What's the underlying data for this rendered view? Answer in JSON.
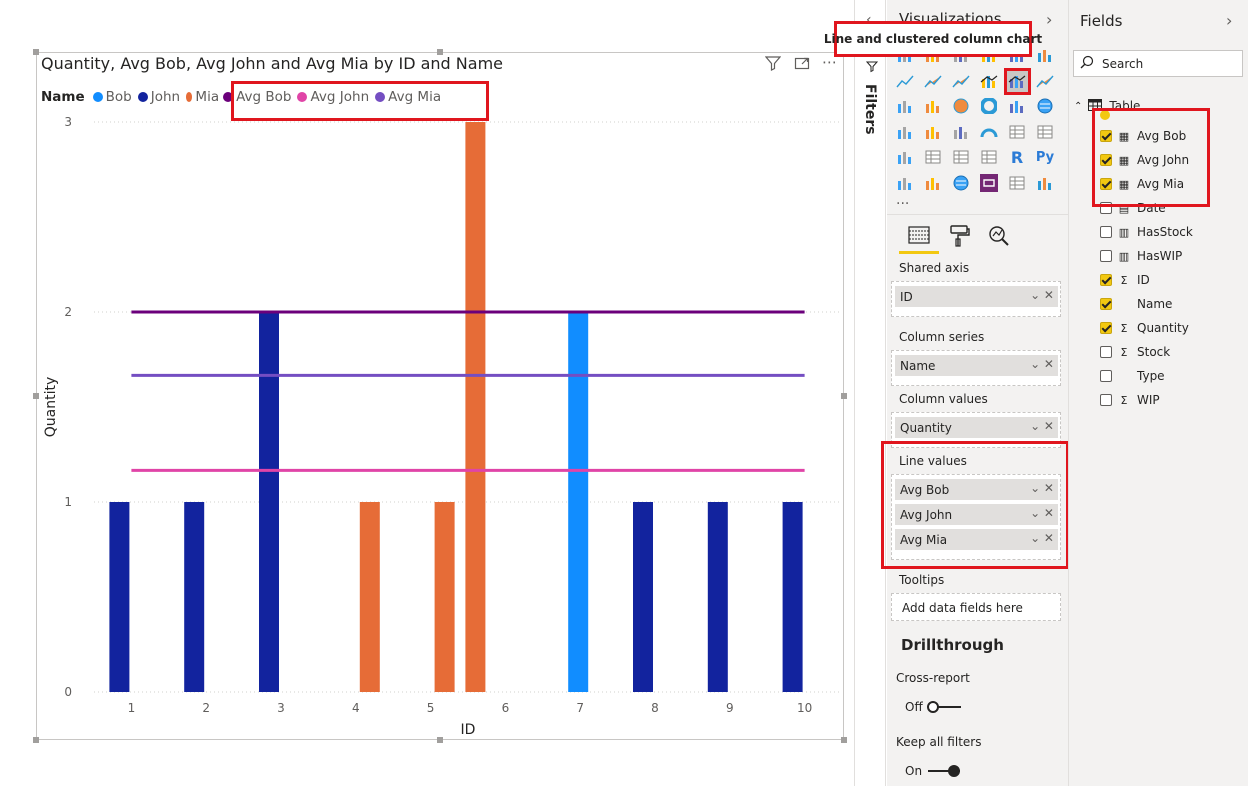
{
  "chart_title": "Quantity, Avg Bob, Avg John and Avg Mia by ID and Name",
  "legend": {
    "title": "Name",
    "items": [
      {
        "label": "Bob",
        "color": "#118dff"
      },
      {
        "label": "John",
        "color": "#12239e"
      },
      {
        "label": "Mia",
        "color": "#e66c37"
      },
      {
        "label": "Avg Bob",
        "color": "#6b007b"
      },
      {
        "label": "Avg John",
        "color": "#e044a7"
      },
      {
        "label": "Avg Mia",
        "color": "#744ec2"
      }
    ]
  },
  "chart_data": {
    "type": "bar",
    "xlabel": "ID",
    "ylabel": "Quantity",
    "ylim": [
      0,
      3
    ],
    "yticks": [
      0,
      1,
      2,
      3
    ],
    "categories": [
      1,
      2,
      3,
      4,
      5,
      6,
      7,
      8,
      9,
      10
    ],
    "series": [
      {
        "name": "Bob",
        "color": "#118dff",
        "values": [
          null,
          null,
          null,
          null,
          null,
          null,
          2,
          null,
          null,
          null
        ]
      },
      {
        "name": "John",
        "color": "#12239e",
        "values": [
          1,
          1,
          2,
          null,
          null,
          null,
          null,
          1,
          1,
          1
        ]
      },
      {
        "name": "Mia",
        "color": "#e66c37",
        "values": [
          null,
          null,
          null,
          1,
          1,
          3,
          null,
          null,
          null,
          null
        ]
      }
    ],
    "lines": [
      {
        "name": "Avg Bob",
        "color": "#6b007b",
        "value": 2
      },
      {
        "name": "Avg John",
        "color": "#e044a7",
        "value": 1.1667
      },
      {
        "name": "Avg Mia",
        "color": "#744ec2",
        "value": 1.6667
      }
    ]
  },
  "filters_label": "Filters",
  "visualizations": {
    "title": "Visualizations",
    "tooltip": "Line and clustered column chart",
    "more": "...",
    "wells": {
      "shared_axis": {
        "label": "Shared axis",
        "fields": [
          "ID"
        ]
      },
      "column_series": {
        "label": "Column series",
        "fields": [
          "Name"
        ]
      },
      "column_values": {
        "label": "Column values",
        "fields": [
          "Quantity"
        ]
      },
      "line_values": {
        "label": "Line values",
        "fields": [
          "Avg Bob",
          "Avg John",
          "Avg Mia"
        ]
      },
      "tooltips": {
        "label": "Tooltips",
        "placeholder": "Add data fields here"
      }
    },
    "drillthrough": {
      "title": "Drillthrough",
      "cross_report": {
        "label": "Cross-report",
        "state": "Off"
      },
      "keep_all_filters": {
        "label": "Keep all filters",
        "state": "On"
      }
    }
  },
  "fields": {
    "title": "Fields",
    "search_placeholder": "Search",
    "table_name": "Table",
    "items": [
      {
        "name": "Avg Bob",
        "checked": true,
        "type": "measure"
      },
      {
        "name": "Avg John",
        "checked": true,
        "type": "measure"
      },
      {
        "name": "Avg Mia",
        "checked": true,
        "type": "measure"
      },
      {
        "name": "Date",
        "checked": false,
        "type": "date"
      },
      {
        "name": "HasStock",
        "checked": false,
        "type": "table"
      },
      {
        "name": "HasWIP",
        "checked": false,
        "type": "table"
      },
      {
        "name": "ID",
        "checked": true,
        "type": "sum"
      },
      {
        "name": "Name",
        "checked": true,
        "type": "text"
      },
      {
        "name": "Quantity",
        "checked": true,
        "type": "sum"
      },
      {
        "name": "Stock",
        "checked": false,
        "type": "sum"
      },
      {
        "name": "Type",
        "checked": false,
        "type": "text"
      },
      {
        "name": "WIP",
        "checked": false,
        "type": "sum"
      }
    ]
  }
}
